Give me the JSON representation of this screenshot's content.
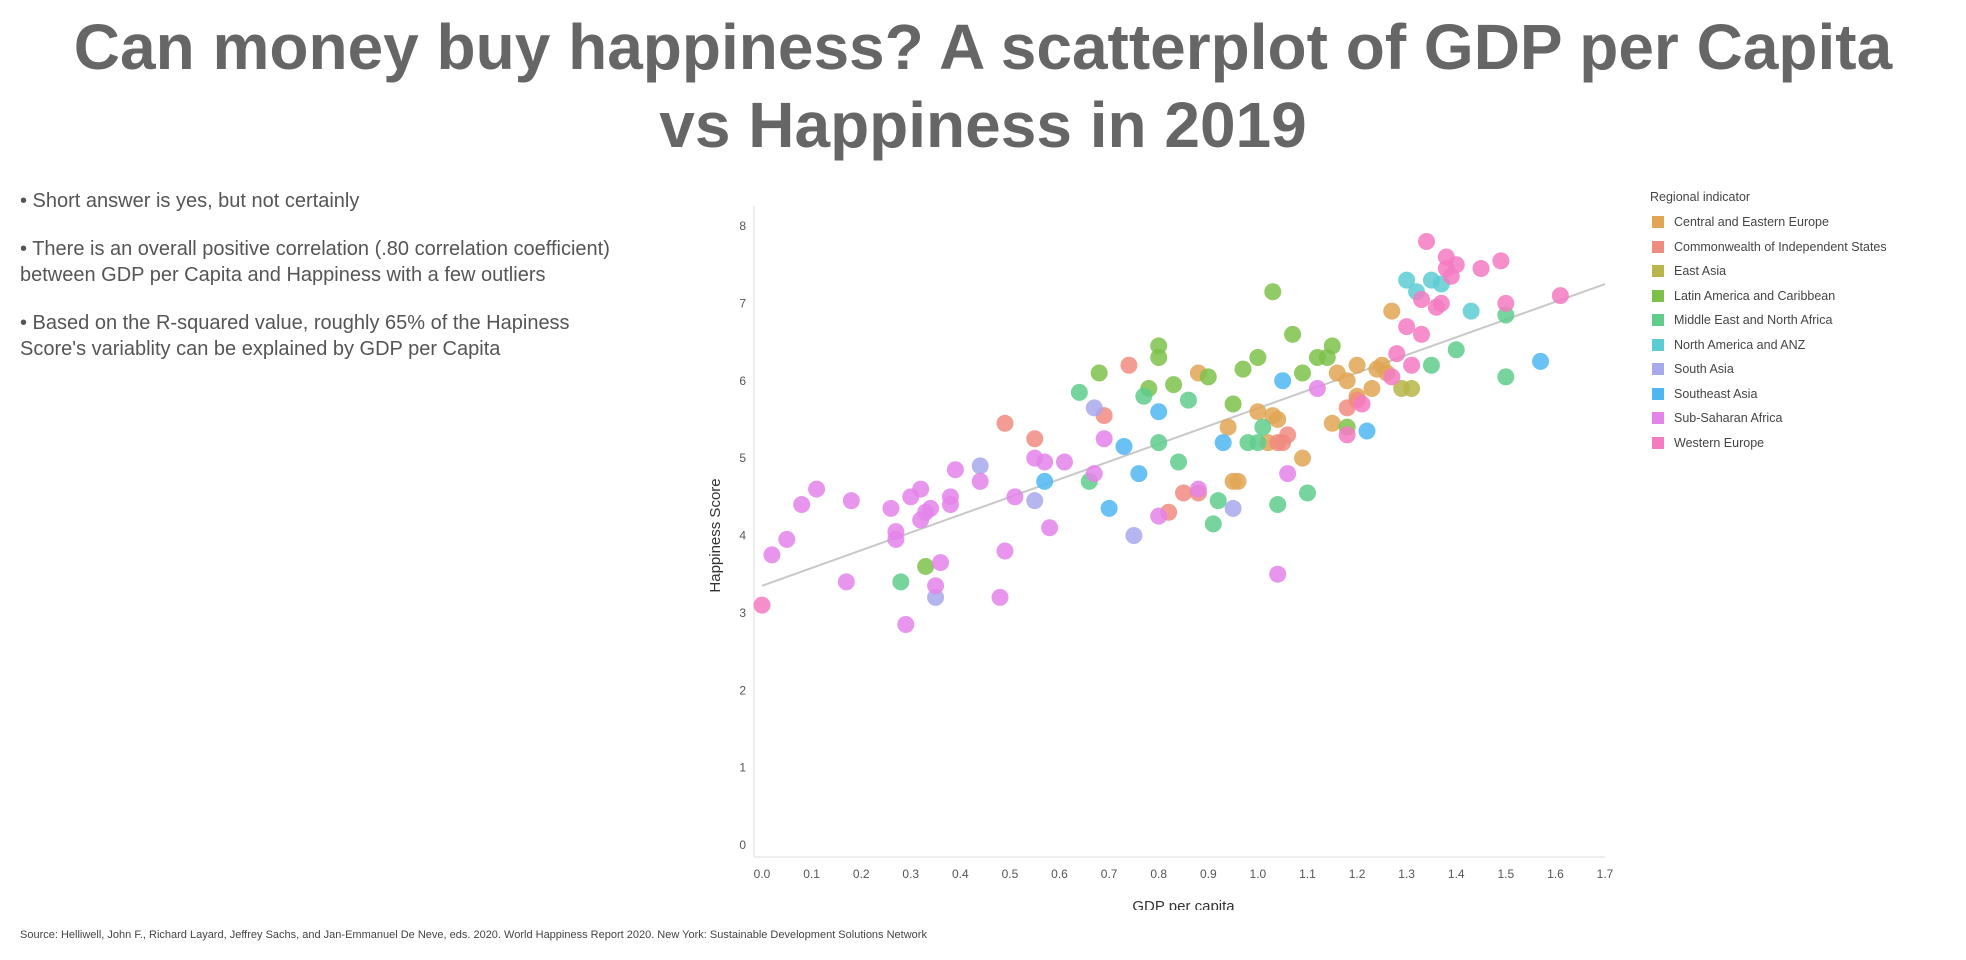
{
  "title_lines": [
    "Can money buy happiness? A scatterplot of GDP per Capita",
    "vs Happiness in 2019"
  ],
  "bullets": [
    "• Short answer is yes, but not certainly",
    "• There is an overall positive correlation (.80 correlation coefficient) between GDP per Capita and Happiness with a few outliers",
    "• Based on the R-squared value, roughly 65% of the Hapiness Score's variablity can be explained by GDP per Capita"
  ],
  "source": "Source: Helliwell, John F., Richard Layard, Jeffrey Sachs, and Jan-Emmanuel De Neve, eds. 2020. World Happiness Report 2020. New York: Sustainable Development Solutions Network",
  "chart_data": {
    "type": "scatter",
    "xlabel": "GDP per capita",
    "ylabel": "Happiness Score",
    "xlim": [
      0,
      1.7
    ],
    "ylim": [
      0,
      8
    ],
    "xticks": [
      "0.0",
      "0.1",
      "0.2",
      "0.3",
      "0.4",
      "0.5",
      "0.6",
      "0.7",
      "0.8",
      "0.9",
      "1.0",
      "1.1",
      "1.2",
      "1.3",
      "1.4",
      "1.5",
      "1.6",
      "1.7"
    ],
    "yticks": [
      "0",
      "1",
      "2",
      "3",
      "4",
      "5",
      "6",
      "7",
      "8"
    ],
    "grid": false,
    "legend_title": "Regional indicator",
    "legend_position": "right",
    "trendline": {
      "x": [
        0,
        1.7
      ],
      "y": [
        3.35,
        7.25
      ]
    },
    "series": [
      {
        "name": "Central and Eastern Europe",
        "color": "#E0A655",
        "points": [
          [
            0.88,
            6.1
          ],
          [
            0.94,
            5.4
          ],
          [
            0.95,
            4.7
          ],
          [
            0.96,
            4.7
          ],
          [
            1.0,
            5.6
          ],
          [
            1.02,
            5.2
          ],
          [
            1.03,
            5.55
          ],
          [
            1.04,
            5.5
          ],
          [
            1.09,
            5.0
          ],
          [
            1.15,
            5.45
          ],
          [
            1.16,
            6.1
          ],
          [
            1.18,
            6.0
          ],
          [
            1.2,
            6.2
          ],
          [
            1.2,
            5.8
          ],
          [
            1.23,
            5.9
          ],
          [
            1.24,
            6.15
          ],
          [
            1.25,
            6.2
          ],
          [
            1.26,
            6.1
          ],
          [
            1.27,
            6.9
          ]
        ]
      },
      {
        "name": "Commonwealth of Independent States",
        "color": "#F08B80",
        "points": [
          [
            0.49,
            5.45
          ],
          [
            0.55,
            5.25
          ],
          [
            0.69,
            5.55
          ],
          [
            0.74,
            6.2
          ],
          [
            0.82,
            4.3
          ],
          [
            0.85,
            4.55
          ],
          [
            0.88,
            4.55
          ],
          [
            1.04,
            5.2
          ],
          [
            1.05,
            5.2
          ],
          [
            1.06,
            5.3
          ],
          [
            1.18,
            5.65
          ],
          [
            1.2,
            5.75
          ]
        ]
      },
      {
        "name": "East Asia",
        "color": "#B8B64A",
        "points": [
          [
            1.29,
            5.9
          ],
          [
            1.31,
            5.9
          ]
        ]
      },
      {
        "name": "Latin America and Caribbean",
        "color": "#7CC24A",
        "points": [
          [
            0.33,
            3.6
          ],
          [
            0.68,
            6.1
          ],
          [
            0.78,
            5.9
          ],
          [
            0.8,
            6.45
          ],
          [
            0.8,
            6.3
          ],
          [
            0.83,
            5.95
          ],
          [
            0.9,
            6.05
          ],
          [
            0.95,
            5.7
          ],
          [
            0.97,
            6.15
          ],
          [
            1.0,
            6.3
          ],
          [
            1.03,
            7.15
          ],
          [
            1.07,
            6.6
          ],
          [
            1.09,
            6.1
          ],
          [
            1.12,
            6.3
          ],
          [
            1.14,
            6.3
          ],
          [
            1.15,
            6.45
          ],
          [
            1.18,
            5.4
          ]
        ]
      },
      {
        "name": "Middle East and North Africa",
        "color": "#5FCC8C",
        "points": [
          [
            0.28,
            3.4
          ],
          [
            0.64,
            5.85
          ],
          [
            0.66,
            4.7
          ],
          [
            0.77,
            5.8
          ],
          [
            0.8,
            5.2
          ],
          [
            0.84,
            4.95
          ],
          [
            0.86,
            5.75
          ],
          [
            0.91,
            4.15
          ],
          [
            0.92,
            4.45
          ],
          [
            0.98,
            5.2
          ],
          [
            1.0,
            5.2
          ],
          [
            1.01,
            5.4
          ],
          [
            1.04,
            4.4
          ],
          [
            1.1,
            4.55
          ],
          [
            1.35,
            6.2
          ],
          [
            1.4,
            6.4
          ],
          [
            1.5,
            6.05
          ],
          [
            1.5,
            6.85
          ]
        ]
      },
      {
        "name": "North America and ANZ",
        "color": "#5CCCD4",
        "points": [
          [
            1.3,
            7.3
          ],
          [
            1.32,
            7.15
          ],
          [
            1.35,
            7.3
          ],
          [
            1.37,
            7.25
          ],
          [
            1.43,
            6.9
          ]
        ]
      },
      {
        "name": "South Asia",
        "color": "#A8A8EC",
        "points": [
          [
            0.35,
            3.2
          ],
          [
            0.44,
            4.9
          ],
          [
            0.55,
            4.45
          ],
          [
            0.67,
            5.65
          ],
          [
            0.75,
            4.0
          ],
          [
            0.95,
            4.35
          ]
        ]
      },
      {
        "name": "Southeast Asia",
        "color": "#4FB6F2",
        "points": [
          [
            0.57,
            4.7
          ],
          [
            0.7,
            4.35
          ],
          [
            0.73,
            5.15
          ],
          [
            0.76,
            4.8
          ],
          [
            0.8,
            5.6
          ],
          [
            0.93,
            5.2
          ],
          [
            1.05,
            6.0
          ],
          [
            1.22,
            5.35
          ],
          [
            1.57,
            6.25
          ]
        ]
      },
      {
        "name": "Sub-Saharan Africa",
        "color": "#E484EA",
        "points": [
          [
            0.02,
            3.75
          ],
          [
            0.05,
            3.95
          ],
          [
            0.08,
            4.4
          ],
          [
            0.11,
            4.6
          ],
          [
            0.17,
            3.4
          ],
          [
            0.18,
            4.45
          ],
          [
            0.26,
            4.35
          ],
          [
            0.27,
            4.05
          ],
          [
            0.27,
            3.95
          ],
          [
            0.29,
            2.85
          ],
          [
            0.3,
            4.5
          ],
          [
            0.32,
            4.6
          ],
          [
            0.32,
            4.2
          ],
          [
            0.33,
            4.3
          ],
          [
            0.34,
            4.35
          ],
          [
            0.35,
            3.35
          ],
          [
            0.36,
            3.65
          ],
          [
            0.38,
            4.5
          ],
          [
            0.38,
            4.4
          ],
          [
            0.39,
            4.85
          ],
          [
            0.44,
            4.7
          ],
          [
            0.48,
            3.2
          ],
          [
            0.49,
            3.8
          ],
          [
            0.51,
            4.5
          ],
          [
            0.55,
            5.0
          ],
          [
            0.57,
            4.95
          ],
          [
            0.58,
            4.1
          ],
          [
            0.61,
            4.95
          ],
          [
            0.67,
            4.8
          ],
          [
            0.69,
            5.25
          ],
          [
            0.8,
            4.25
          ],
          [
            0.88,
            4.6
          ],
          [
            1.04,
            3.5
          ],
          [
            1.06,
            4.8
          ],
          [
            1.12,
            5.9
          ]
        ]
      },
      {
        "name": "Western Europe",
        "color": "#F47AC2",
        "points": [
          [
            0.0,
            3.1
          ],
          [
            1.18,
            5.3
          ],
          [
            1.21,
            5.7
          ],
          [
            1.27,
            6.05
          ],
          [
            1.28,
            6.35
          ],
          [
            1.3,
            6.7
          ],
          [
            1.31,
            6.2
          ],
          [
            1.33,
            6.6
          ],
          [
            1.33,
            7.05
          ],
          [
            1.34,
            7.8
          ],
          [
            1.36,
            6.95
          ],
          [
            1.37,
            7.0
          ],
          [
            1.38,
            7.45
          ],
          [
            1.38,
            7.6
          ],
          [
            1.39,
            7.35
          ],
          [
            1.4,
            7.5
          ],
          [
            1.45,
            7.45
          ],
          [
            1.49,
            7.55
          ],
          [
            1.5,
            7.0
          ],
          [
            1.61,
            7.1
          ]
        ]
      }
    ]
  }
}
